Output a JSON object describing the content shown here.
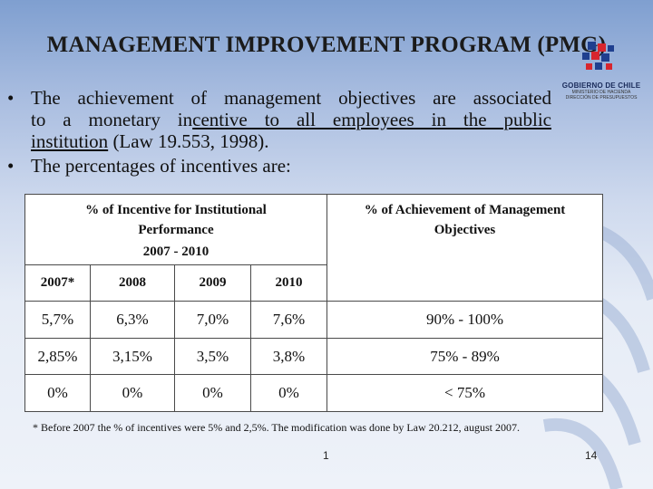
{
  "title": "MANAGEMENT IMPROVEMENT PROGRAM (PMG)",
  "logo": {
    "main": "GOBIERNO DE CHILE",
    "sub1": "MINISTERIO DE HACIENDA",
    "sub2": "DIRECCIÓN DE PRESUPUESTOS"
  },
  "bullets": {
    "b1_line1": "The achievement of management objectives are associated",
    "b1_line2_a": "to a monetary in",
    "b1_line2_b": "centive to all employees in the public",
    "b1_line3_a": "institution",
    "b1_line3_b": " (Law 19.553, 1998).",
    "b2": "The percentages of incentives are:"
  },
  "table": {
    "header_left": "% of Incentive for Institutional Performance",
    "header_left_years": "2007 - 2010",
    "header_right": "% of Achievement of Management Objectives",
    "years": [
      "2007*",
      "2008",
      "2009",
      "2010"
    ],
    "rows": [
      {
        "v": [
          "5,7%",
          "6,3%",
          "7,0%",
          "7,6%"
        ],
        "ach": "90% - 100%"
      },
      {
        "v": [
          "2,85%",
          "3,15%",
          "3,5%",
          "3,8%"
        ],
        "ach": "75% - 89%"
      },
      {
        "v": [
          "0%",
          "0%",
          "0%",
          "0%"
        ],
        "ach": "< 75%"
      }
    ]
  },
  "footnote": "* Before 2007 the % of incentives were 5% and 2,5%. The modification was done by Law 20.212, august 2007.",
  "page_center": "1",
  "page_right": "14"
}
